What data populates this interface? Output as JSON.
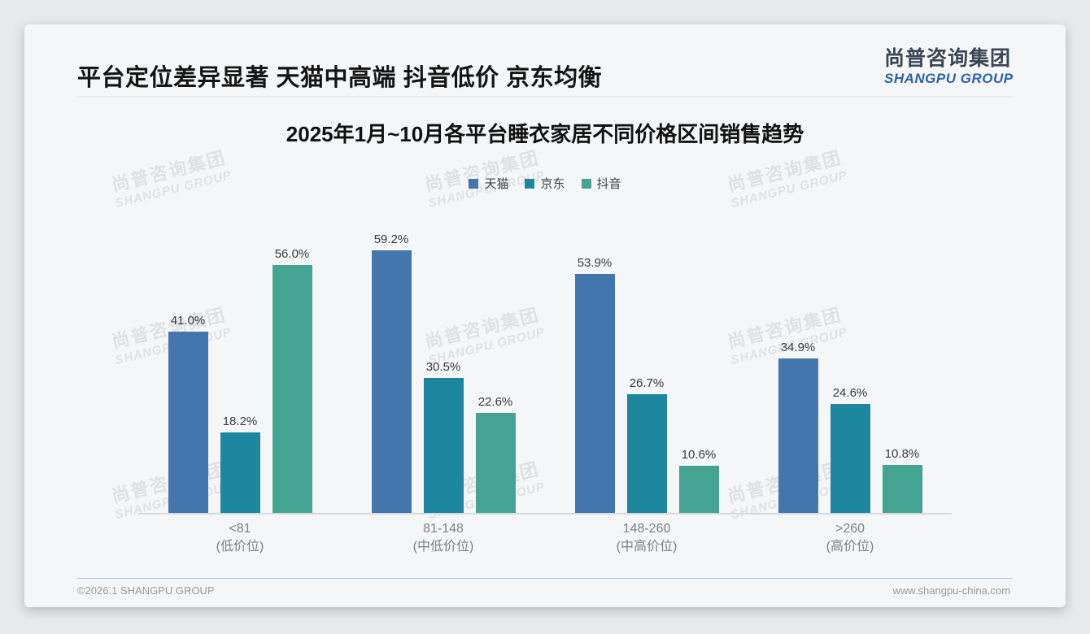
{
  "page": {
    "title": "平台定位差异显著 天猫中高端 抖音低价 京东均衡",
    "logo": {
      "cn": "尚普咨询集团",
      "en": "SHANGPU GROUP"
    },
    "watermark": {
      "line1": "尚普咨询集团",
      "line2": "SHANGPU GROUP"
    },
    "footer": {
      "left": "©2026.1 SHANGPU GROUP",
      "right": "www.shangpu-china.com"
    }
  },
  "chart_data": {
    "type": "bar",
    "title": "2025年1月~10月各平台睡衣家居不同价格区间销售趋势",
    "value_suffix": "%",
    "ylim": [
      0,
      66
    ],
    "grid": false,
    "legend_position": "top",
    "categories": [
      {
        "label": "<81",
        "sublabel": "(低价位)"
      },
      {
        "label": "81-148",
        "sublabel": "(中低价位)"
      },
      {
        "label": "148-260",
        "sublabel": "(中高价位)"
      },
      {
        "label": ">260",
        "sublabel": "(高价位)"
      }
    ],
    "series": [
      {
        "name": "天猫",
        "color": "#4376ad",
        "values": [
          41.0,
          59.2,
          53.9,
          34.9
        ]
      },
      {
        "name": "京东",
        "color": "#1e87a0",
        "values": [
          18.2,
          30.5,
          26.7,
          24.6
        ]
      },
      {
        "name": "抖音",
        "color": "#45a491",
        "values": [
          56.0,
          22.6,
          10.6,
          10.8
        ]
      }
    ]
  }
}
